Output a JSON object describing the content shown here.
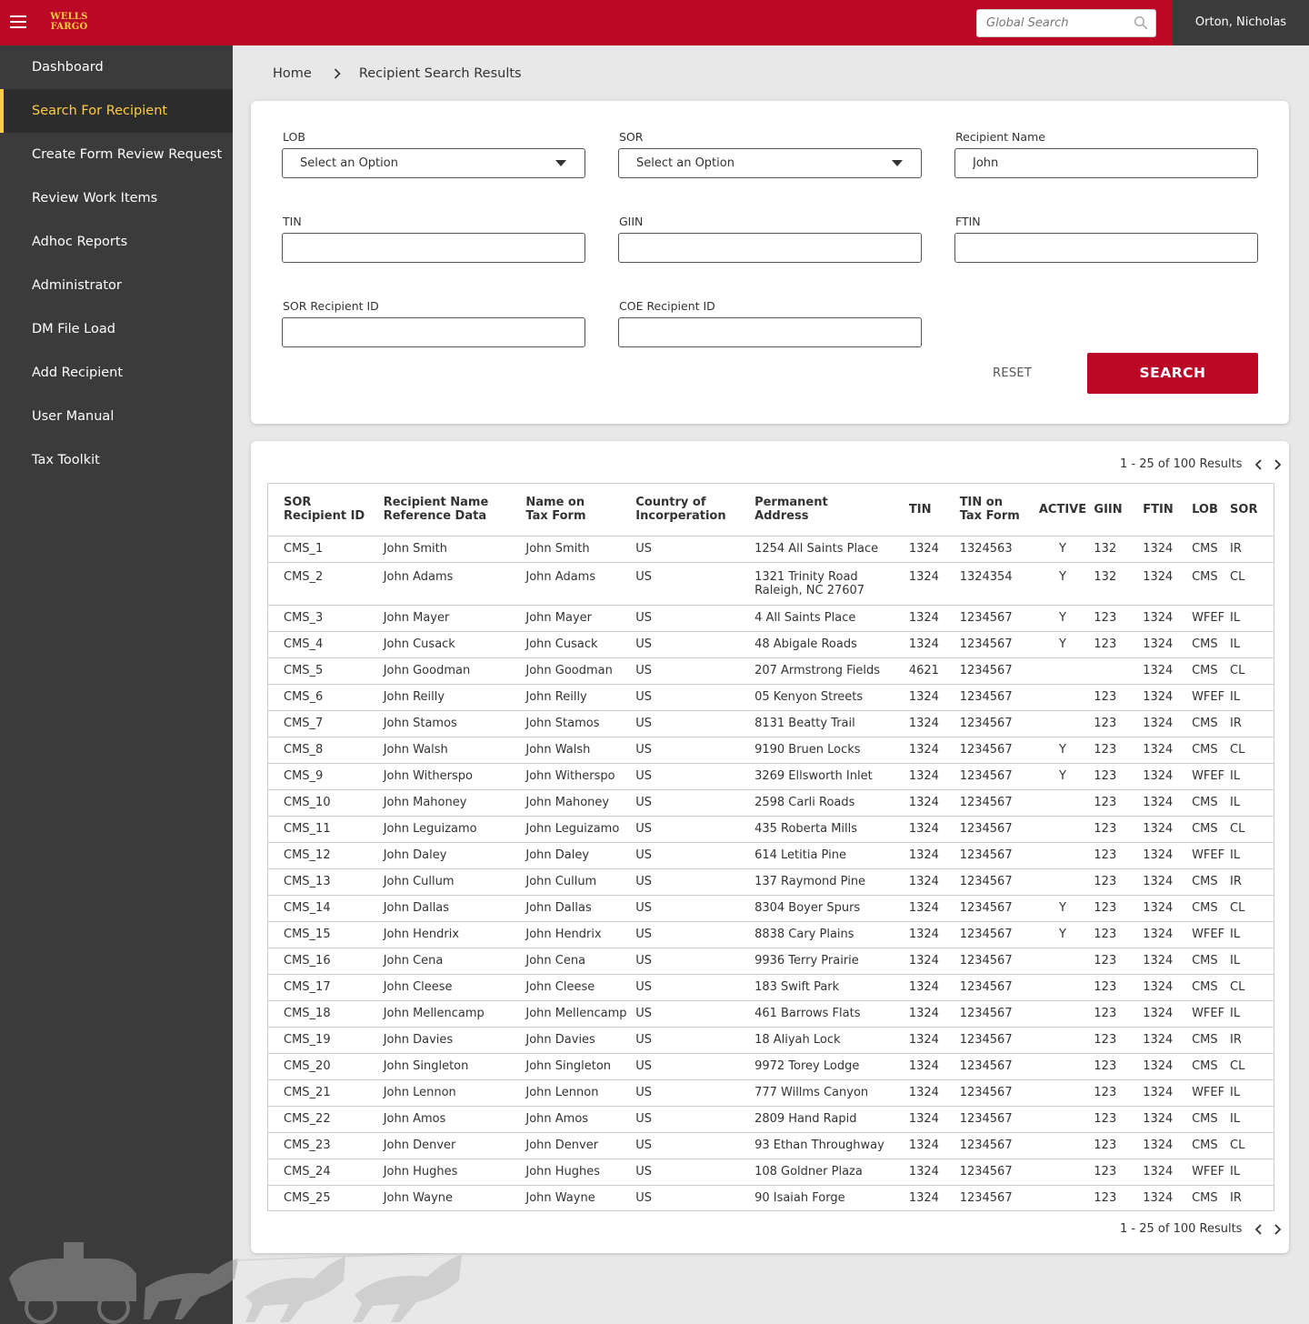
{
  "header": {
    "logo_line1": "WELLS",
    "logo_line2": "FARGO",
    "search_placeholder": "Global Search",
    "user_name": "Orton, Nicholas"
  },
  "sidebar": {
    "items": [
      {
        "label": "Dashboard"
      },
      {
        "label": "Search For Recipient",
        "active": true
      },
      {
        "label": "Create Form Review Request"
      },
      {
        "label": "Review Work Items"
      },
      {
        "label": "Adhoc Reports"
      },
      {
        "label": "Administrator"
      },
      {
        "label": "DM File Load"
      },
      {
        "label": "Add Recipient"
      },
      {
        "label": "User Manual"
      },
      {
        "label": "Tax Toolkit"
      }
    ]
  },
  "breadcrumb": {
    "home": "Home",
    "current": "Recipient Search Results"
  },
  "search_form": {
    "lob": {
      "label": "LOB",
      "value": "Select an Option"
    },
    "sor": {
      "label": "SOR",
      "value": "Select an Option"
    },
    "recipient_name": {
      "label": "Recipient Name",
      "value": "John"
    },
    "tin": {
      "label": "TIN",
      "value": ""
    },
    "giin": {
      "label": "GIIN",
      "value": ""
    },
    "ftin": {
      "label": "FTIN",
      "value": ""
    },
    "sor_recipient_id": {
      "label": "SOR Recipient ID",
      "value": ""
    },
    "coe_recipient_id": {
      "label": "COE Recipient ID",
      "value": ""
    },
    "reset_label": "RESET",
    "search_label": "SEARCH"
  },
  "results": {
    "count_text": "1 - 25 of 100 Results",
    "columns": [
      {
        "line1": "SOR",
        "line2": "Recipient ID"
      },
      {
        "line1": "Recipient Name",
        "line2": "Reference Data"
      },
      {
        "line1": "Name on",
        "line2": "Tax Form"
      },
      {
        "line1": "Country of",
        "line2": "Incorperation"
      },
      {
        "line1": "Permanent",
        "line2": "Address"
      },
      {
        "line1": "TIN",
        "line2": ""
      },
      {
        "line1": "TIN on",
        "line2": "Tax Form"
      },
      {
        "line1": "ACTIVE",
        "line2": ""
      },
      {
        "line1": "GIIN",
        "line2": ""
      },
      {
        "line1": "FTIN",
        "line2": ""
      },
      {
        "line1": "LOB",
        "line2": ""
      },
      {
        "line1": "SOR",
        "line2": ""
      }
    ],
    "rows": [
      [
        "CMS_1",
        "John Smith",
        "John Smith",
        "US",
        "1254 All Saints Place",
        "",
        "1324",
        "1324563",
        "Y",
        "132",
        "1324",
        "CMS",
        "IR"
      ],
      [
        "CMS_2",
        "John Adams",
        "John Adams",
        "US",
        "1321 Trinity Road",
        "Raleigh, NC 27607",
        "1324",
        "1324354",
        "Y",
        "132",
        "1324",
        "CMS",
        "CL"
      ],
      [
        "CMS_3",
        "John Mayer",
        "John Mayer",
        "US",
        "4 All Saints Place",
        "",
        "1324",
        "1234567",
        "Y",
        "123",
        "1324",
        "WFEF",
        "IL"
      ],
      [
        "CMS_4",
        "John Cusack",
        "John Cusack",
        "US",
        "48 Abigale Roads",
        "",
        "1324",
        "1234567",
        "Y",
        "123",
        "1324",
        "CMS",
        "IL"
      ],
      [
        "CMS_5",
        "John Goodman",
        "John Goodman",
        "US",
        "207 Armstrong Fields",
        "",
        "4621",
        "1234567",
        "",
        "",
        "1324",
        "CMS",
        "CL"
      ],
      [
        "CMS_6",
        "John Reilly",
        "John Reilly",
        "US",
        "05 Kenyon Streets",
        "",
        "1324",
        "1234567",
        "",
        "123",
        "1324",
        "WFEF",
        "IL"
      ],
      [
        "CMS_7",
        "John Stamos",
        "John Stamos",
        "US",
        "8131 Beatty Trail",
        "",
        "1324",
        "1234567",
        "",
        "123",
        "1324",
        "CMS",
        "IR"
      ],
      [
        "CMS_8",
        "John Walsh",
        "John Walsh",
        "US",
        "9190 Bruen Locks",
        "",
        "1324",
        "1234567",
        "Y",
        "123",
        "1324",
        "CMS",
        "CL"
      ],
      [
        "CMS_9",
        "John Witherspo",
        "John Witherspo",
        "US",
        "3269 Ellsworth Inlet",
        "",
        "1324",
        "1234567",
        "Y",
        "123",
        "1324",
        "WFEF",
        "IL"
      ],
      [
        "CMS_10",
        "John Mahoney",
        "John Mahoney",
        "US",
        "2598 Carli Roads",
        "",
        "1324",
        "1234567",
        "",
        "123",
        "1324",
        "CMS",
        "IL"
      ],
      [
        "CMS_11",
        "John Leguizamo",
        "John Leguizamo",
        "US",
        "435 Roberta Mills",
        "",
        "1324",
        "1234567",
        "",
        "123",
        "1324",
        "CMS",
        "CL"
      ],
      [
        "CMS_12",
        "John Daley",
        "John Daley",
        "US",
        "614 Letitia Pine",
        "",
        "1324",
        "1234567",
        "",
        "123",
        "1324",
        "WFEF",
        "IL"
      ],
      [
        "CMS_13",
        "John Cullum",
        "John Cullum",
        "US",
        "137 Raymond Pine",
        "",
        "1324",
        "1234567",
        "",
        "123",
        "1324",
        "CMS",
        "IR"
      ],
      [
        "CMS_14",
        "John Dallas",
        "John Dallas",
        "US",
        "8304 Boyer Spurs",
        "",
        "1324",
        "1234567",
        "Y",
        "123",
        "1324",
        "CMS",
        "CL"
      ],
      [
        "CMS_15",
        "John Hendrix",
        "John Hendrix",
        "US",
        "8838 Cary Plains",
        "",
        "1324",
        "1234567",
        "Y",
        "123",
        "1324",
        "WFEF",
        "IL"
      ],
      [
        "CMS_16",
        "John Cena",
        "John Cena",
        "US",
        "9936 Terry Prairie",
        "",
        "1324",
        "1234567",
        "",
        "123",
        "1324",
        "CMS",
        "IL"
      ],
      [
        "CMS_17",
        "John Cleese",
        "John Cleese",
        "US",
        "183 Swift Park",
        "",
        "1324",
        "1234567",
        "",
        "123",
        "1324",
        "CMS",
        "CL"
      ],
      [
        "CMS_18",
        "John Mellencamp",
        "John Mellencamp",
        "US",
        "461 Barrows Flats",
        "",
        "1324",
        "1234567",
        "",
        "123",
        "1324",
        "WFEF",
        "IL"
      ],
      [
        "CMS_19",
        "John Davies",
        "John Davies",
        "US",
        "18 Aliyah Lock",
        "",
        "1324",
        "1234567",
        "",
        "123",
        "1324",
        "CMS",
        "IR"
      ],
      [
        "CMS_20",
        "John Singleton",
        "John Singleton",
        "US",
        "9972 Torey Lodge",
        "",
        "1324",
        "1234567",
        "",
        "123",
        "1324",
        "CMS",
        "CL"
      ],
      [
        "CMS_21",
        "John Lennon",
        "John Lennon",
        "US",
        "777 Willms Canyon",
        "",
        "1324",
        "1234567",
        "",
        "123",
        "1324",
        "WFEF",
        "IL"
      ],
      [
        "CMS_22",
        "John Amos",
        "John Amos",
        "US",
        "2809 Hand Rapid",
        "",
        "1324",
        "1234567",
        "",
        "123",
        "1324",
        "CMS",
        "IL"
      ],
      [
        "CMS_23",
        "John Denver",
        "John Denver",
        "US",
        "93 Ethan Throughway",
        "",
        "1324",
        "1234567",
        "",
        "123",
        "1324",
        "CMS",
        "CL"
      ],
      [
        "CMS_24",
        "John Hughes",
        "John Hughes",
        "US",
        "108 Goldner Plaza",
        "",
        "1324",
        "1234567",
        "",
        "123",
        "1324",
        "WFEF",
        "IL"
      ],
      [
        "CMS_25",
        "John Wayne",
        "John Wayne",
        "US",
        "90 Isaiah Forge",
        "",
        "1324",
        "1234567",
        "",
        "123",
        "1324",
        "CMS",
        "IR"
      ]
    ]
  },
  "colors": {
    "brand_red": "#bb0826",
    "brand_gold": "#ffcd41",
    "sidebar_bg": "#3b3b3b"
  },
  "icons": [
    "hamburger-icon",
    "search-icon",
    "chevron-right-icon",
    "chevron-left-icon",
    "caret-down-icon"
  ]
}
